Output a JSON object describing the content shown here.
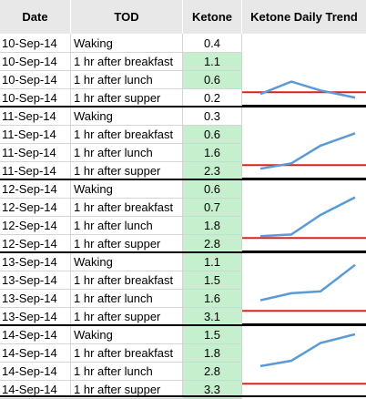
{
  "headers": {
    "date": "Date",
    "tod": "TOD",
    "ketone": "Ketone",
    "trend": "Ketone Daily Trend"
  },
  "colors": {
    "header_bg": "#e8e8e8",
    "highlight": "#c6efce",
    "trend_line": "#5b9bd5",
    "threshold_line": "#e02020"
  },
  "rows": [
    {
      "date": "10-Sep-14",
      "tod": "Waking",
      "ketone": "0.4",
      "highlight": false
    },
    {
      "date": "10-Sep-14",
      "tod": "1 hr after breakfast",
      "ketone": "1.1",
      "highlight": true
    },
    {
      "date": "10-Sep-14",
      "tod": "1 hr after lunch",
      "ketone": "0.6",
      "highlight": true
    },
    {
      "date": "10-Sep-14",
      "tod": "1 hr after supper",
      "ketone": "0.2",
      "highlight": false
    },
    {
      "date": "11-Sep-14",
      "tod": "Waking",
      "ketone": "0.3",
      "highlight": false
    },
    {
      "date": "11-Sep-14",
      "tod": "1 hr after breakfast",
      "ketone": "0.6",
      "highlight": true
    },
    {
      "date": "11-Sep-14",
      "tod": "1 hr after lunch",
      "ketone": "1.6",
      "highlight": true
    },
    {
      "date": "11-Sep-14",
      "tod": "1 hr after supper",
      "ketone": "2.3",
      "highlight": true
    },
    {
      "date": "12-Sep-14",
      "tod": "Waking",
      "ketone": "0.6",
      "highlight": true
    },
    {
      "date": "12-Sep-14",
      "tod": "1 hr after breakfast",
      "ketone": "0.7",
      "highlight": true
    },
    {
      "date": "12-Sep-14",
      "tod": "1 hr after lunch",
      "ketone": "1.8",
      "highlight": true
    },
    {
      "date": "12-Sep-14",
      "tod": "1 hr after supper",
      "ketone": "2.8",
      "highlight": true
    },
    {
      "date": "13-Sep-14",
      "tod": "Waking",
      "ketone": "1.1",
      "highlight": true
    },
    {
      "date": "13-Sep-14",
      "tod": "1 hr after breakfast",
      "ketone": "1.5",
      "highlight": true
    },
    {
      "date": "13-Sep-14",
      "tod": "1 hr after lunch",
      "ketone": "1.6",
      "highlight": true
    },
    {
      "date": "13-Sep-14",
      "tod": "1 hr after supper",
      "ketone": "3.1",
      "highlight": true
    },
    {
      "date": "14-Sep-14",
      "tod": "Waking",
      "ketone": "1.5",
      "highlight": true
    },
    {
      "date": "14-Sep-14",
      "tod": "1 hr after breakfast",
      "ketone": "1.8",
      "highlight": true
    },
    {
      "date": "14-Sep-14",
      "tod": "1 hr after lunch",
      "ketone": "2.8",
      "highlight": true
    },
    {
      "date": "14-Sep-14",
      "tod": "1 hr after supper",
      "ketone": "3.3",
      "highlight": true
    }
  ],
  "chart_data": {
    "type": "line",
    "threshold": 0.5,
    "series": [
      {
        "date": "10-Sep-14",
        "values": [
          0.4,
          1.1,
          0.6,
          0.2
        ]
      },
      {
        "date": "11-Sep-14",
        "values": [
          0.3,
          0.6,
          1.6,
          2.3
        ]
      },
      {
        "date": "12-Sep-14",
        "values": [
          0.6,
          0.7,
          1.8,
          2.8
        ]
      },
      {
        "date": "13-Sep-14",
        "values": [
          1.1,
          1.5,
          1.6,
          3.1
        ]
      },
      {
        "date": "14-Sep-14",
        "values": [
          1.5,
          1.8,
          2.8,
          3.3
        ]
      }
    ]
  }
}
